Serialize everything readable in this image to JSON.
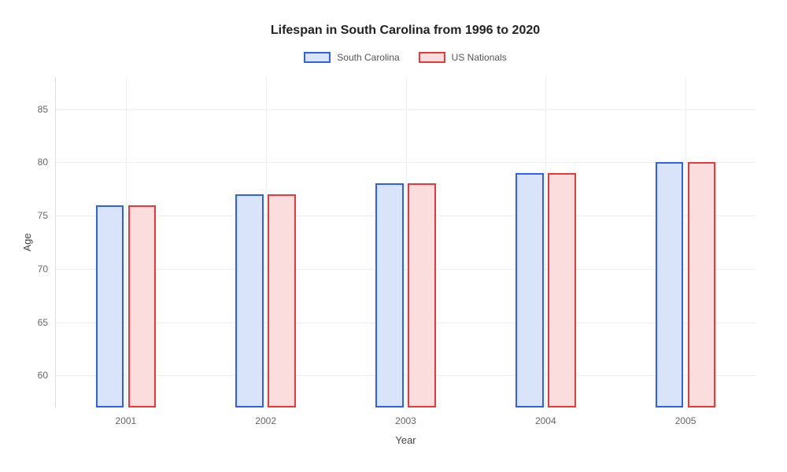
{
  "chart": {
    "type": "bar",
    "title": "Lifespan in South Carolina from 1996 to 2020",
    "title_fontsize": 16,
    "xlabel": "Year",
    "ylabel": "Age",
    "label_fontsize": 13,
    "tick_fontsize": 12,
    "background_color": "#ffffff",
    "grid_color": "#eeeeee",
    "axis_color": "#dddddd",
    "ylim": [
      57,
      88
    ],
    "yticks": [
      60,
      65,
      70,
      75,
      80,
      85
    ],
    "categories": [
      "2001",
      "2002",
      "2003",
      "2004",
      "2005"
    ],
    "legend": {
      "items": [
        {
          "label": "South Carolina",
          "fill": "#d9e4fb",
          "stroke": "#2e62e8"
        },
        {
          "label": "US Nationals",
          "fill": "#fbdddd",
          "stroke": "#e83a3a"
        }
      ],
      "swatch_width": 34,
      "swatch_height": 14,
      "fontsize": 12
    },
    "series": [
      {
        "name": "South Carolina",
        "fill": "#d9e4fb",
        "stroke": "#2e62e8",
        "values": [
          76,
          77,
          78,
          79,
          80
        ]
      },
      {
        "name": "US Nationals",
        "fill": "#fbdddd",
        "stroke": "#e83a3a",
        "values": [
          76,
          77,
          78,
          79,
          80
        ]
      }
    ],
    "bar_width_pct": 4.0,
    "group_gap_pct": 0.6,
    "stroke_width": 2
  }
}
